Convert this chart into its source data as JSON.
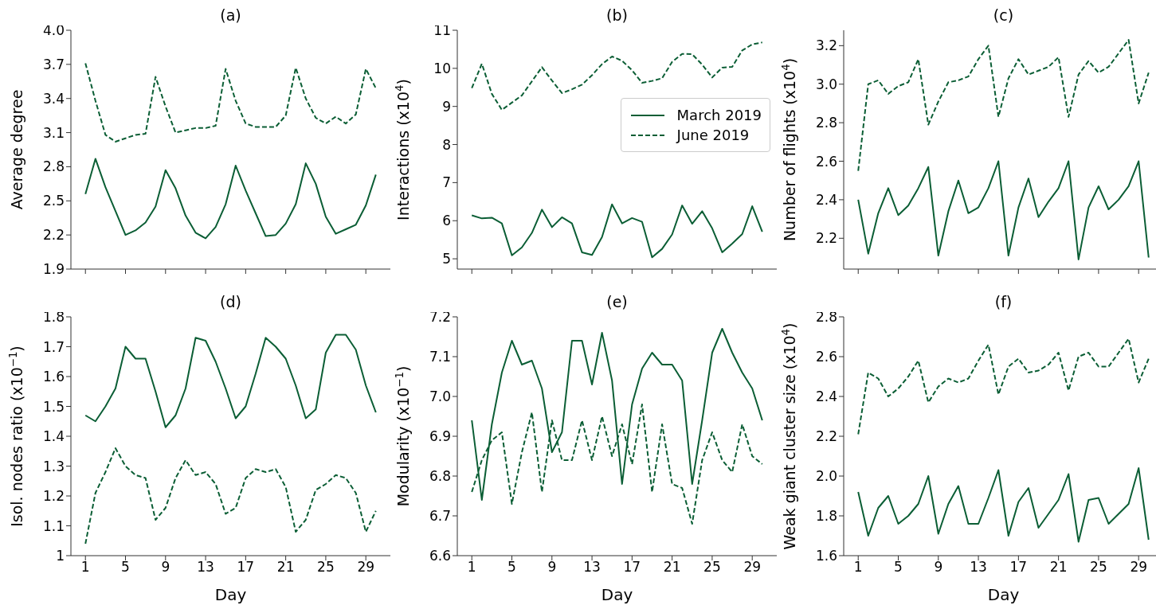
{
  "chart_data": [
    {
      "type": "line",
      "title": "(a)",
      "ylabel": "Average degree",
      "x": [
        1,
        2,
        3,
        4,
        5,
        6,
        7,
        8,
        9,
        10,
        11,
        12,
        13,
        14,
        15,
        16,
        17,
        18,
        19,
        20,
        21,
        22,
        23,
        24,
        25,
        26,
        27,
        28,
        29,
        30
      ],
      "xlim": [
        -0.45,
        31.45
      ],
      "xticks": [
        1,
        5,
        9,
        13,
        17,
        21,
        25,
        29
      ],
      "ylim": [
        1.9,
        4.0
      ],
      "yticks": [
        1.9,
        2.2,
        2.5,
        2.8,
        3.1,
        3.4,
        3.7,
        {
          "value": 4,
          "label": "4.0"
        }
      ],
      "tick_labels": "y",
      "grid": false,
      "legend": false,
      "series": [
        {
          "color": "#0b5e35",
          "line_style": "solid",
          "values": [
            2.56,
            2.87,
            2.62,
            2.41,
            2.2,
            2.24,
            2.31,
            2.45,
            2.77,
            2.61,
            2.37,
            2.22,
            2.17,
            2.27,
            2.47,
            2.81,
            2.59,
            2.39,
            2.19,
            2.2,
            2.3,
            2.47,
            2.83,
            2.65,
            2.36,
            2.21,
            2.25,
            2.29,
            2.46,
            2.73
          ]
        },
        {
          "color": "#0b5e35",
          "line_style": "dashed",
          "values": [
            3.71,
            3.38,
            3.08,
            3.02,
            3.05,
            3.08,
            3.09,
            3.59,
            3.33,
            3.1,
            3.12,
            3.14,
            3.14,
            3.16,
            3.66,
            3.38,
            3.18,
            3.15,
            3.15,
            3.15,
            3.25,
            3.67,
            3.4,
            3.23,
            3.18,
            3.24,
            3.18,
            3.26,
            3.66,
            3.49
          ]
        }
      ]
    },
    {
      "type": "line",
      "title": "(b)",
      "ylabel": "Interactions (x10$^{4}$)",
      "x": [
        1,
        2,
        3,
        4,
        5,
        6,
        7,
        8,
        9,
        10,
        11,
        12,
        13,
        14,
        15,
        16,
        17,
        18,
        19,
        20,
        21,
        22,
        23,
        24,
        25,
        26,
        27,
        28,
        29,
        30
      ],
      "xlim": [
        -0.45,
        31.45
      ],
      "xticks": [
        1,
        5,
        9,
        13,
        17,
        21,
        25,
        29
      ],
      "ylim": [
        4.73,
        11
      ],
      "yticks": [
        5,
        6,
        7,
        8,
        9,
        10,
        11
      ],
      "tick_labels": "y",
      "grid": false,
      "legend": "right",
      "series": [
        {
          "name": "March 2019",
          "color": "#0b5e35",
          "line_style": "solid",
          "values": [
            6.14,
            6.06,
            6.08,
            5.93,
            5.09,
            5.3,
            5.68,
            6.29,
            5.83,
            6.09,
            5.93,
            5.17,
            5.1,
            5.57,
            6.43,
            5.93,
            6.07,
            5.97,
            5.04,
            5.26,
            5.64,
            6.4,
            5.92,
            6.25,
            5.8,
            5.17,
            5.4,
            5.65,
            6.38,
            5.71
          ]
        },
        {
          "name": "June 2019",
          "color": "#0b5e35",
          "line_style": "dashed",
          "values": [
            9.48,
            10.12,
            9.33,
            8.91,
            9.1,
            9.29,
            9.66,
            10.03,
            9.68,
            9.35,
            9.45,
            9.57,
            9.82,
            10.11,
            10.31,
            10.2,
            9.95,
            9.62,
            9.67,
            9.74,
            10.17,
            10.38,
            10.37,
            10.1,
            9.76,
            10.02,
            10.04,
            10.47,
            10.63,
            10.68
          ]
        }
      ]
    },
    {
      "type": "line",
      "title": "(c)",
      "ylabel": "Number of flights (x10$^{4}$)",
      "x": [
        1,
        2,
        3,
        4,
        5,
        6,
        7,
        8,
        9,
        10,
        11,
        12,
        13,
        14,
        15,
        16,
        17,
        18,
        19,
        20,
        21,
        22,
        23,
        24,
        25,
        26,
        27,
        28,
        29,
        30
      ],
      "xlim": [
        -0.45,
        31.45
      ],
      "xticks": [
        1,
        5,
        9,
        13,
        17,
        21,
        25,
        29
      ],
      "ylim": [
        2.04,
        3.28
      ],
      "yticks": [
        2.2,
        2.4,
        2.6,
        2.8,
        {
          "value": 3,
          "label": "3.0"
        },
        3.2
      ],
      "tick_labels": "y",
      "grid": false,
      "legend": false,
      "series": [
        {
          "color": "#0b5e35",
          "line_style": "solid",
          "values": [
            2.4,
            2.12,
            2.33,
            2.46,
            2.32,
            2.37,
            2.46,
            2.57,
            2.11,
            2.34,
            2.5,
            2.33,
            2.36,
            2.46,
            2.6,
            2.11,
            2.36,
            2.51,
            2.31,
            2.39,
            2.46,
            2.6,
            2.09,
            2.36,
            2.47,
            2.35,
            2.4,
            2.47,
            2.6,
            2.1
          ]
        },
        {
          "color": "#0b5e35",
          "line_style": "dashed",
          "values": [
            2.55,
            3.0,
            3.02,
            2.95,
            2.99,
            3.01,
            3.13,
            2.79,
            2.91,
            3.01,
            3.02,
            3.04,
            3.13,
            3.2,
            2.83,
            3.03,
            3.13,
            3.05,
            3.07,
            3.09,
            3.14,
            2.83,
            3.05,
            3.12,
            3.06,
            3.09,
            3.16,
            3.23,
            2.9,
            3.06
          ]
        }
      ]
    },
    {
      "type": "line",
      "title": "(d)",
      "xlabel": "Day",
      "ylabel": "Isol. nodes ratio (x10$^{−1}$)",
      "x": [
        1,
        2,
        3,
        4,
        5,
        6,
        7,
        8,
        9,
        10,
        11,
        12,
        13,
        14,
        15,
        16,
        17,
        18,
        19,
        20,
        21,
        22,
        23,
        24,
        25,
        26,
        27,
        28,
        29,
        30
      ],
      "xlim": [
        -0.45,
        31.45
      ],
      "xticks": [
        1,
        5,
        9,
        13,
        17,
        21,
        25,
        29
      ],
      "ylim": [
        1,
        1.8
      ],
      "yticks": [
        1,
        1.1,
        1.2,
        1.3,
        1.4,
        1.5,
        1.6,
        1.7,
        1.8
      ],
      "grid": false,
      "legend": false,
      "series": [
        {
          "color": "#0b5e35",
          "line_style": "solid",
          "values": [
            1.47,
            1.45,
            1.5,
            1.56,
            1.7,
            1.66,
            1.66,
            1.55,
            1.43,
            1.47,
            1.56,
            1.73,
            1.72,
            1.65,
            1.56,
            1.46,
            1.5,
            1.61,
            1.73,
            1.7,
            1.66,
            1.57,
            1.46,
            1.49,
            1.68,
            1.74,
            1.74,
            1.69,
            1.57,
            1.48
          ]
        },
        {
          "color": "#0b5e35",
          "line_style": "dashed",
          "values": [
            1.04,
            1.21,
            1.28,
            1.36,
            1.3,
            1.27,
            1.26,
            1.12,
            1.16,
            1.26,
            1.32,
            1.27,
            1.28,
            1.24,
            1.14,
            1.16,
            1.26,
            1.29,
            1.28,
            1.29,
            1.23,
            1.08,
            1.12,
            1.22,
            1.24,
            1.27,
            1.26,
            1.21,
            1.08,
            1.15
          ]
        }
      ]
    },
    {
      "type": "line",
      "title": "(e)",
      "xlabel": "Day",
      "ylabel": "Modularity (x10$^{−1}$)",
      "x": [
        1,
        2,
        3,
        4,
        5,
        6,
        7,
        8,
        9,
        10,
        11,
        12,
        13,
        14,
        15,
        16,
        17,
        18,
        19,
        20,
        21,
        22,
        23,
        24,
        25,
        26,
        27,
        28,
        29,
        30
      ],
      "xlim": [
        -0.45,
        31.45
      ],
      "xticks": [
        1,
        5,
        9,
        13,
        17,
        21,
        25,
        29
      ],
      "ylim": [
        6.6,
        7.2
      ],
      "yticks": [
        6.6,
        6.7,
        6.8,
        6.9,
        {
          "value": 7,
          "label": "7.0"
        },
        7.1,
        7.2
      ],
      "grid": false,
      "legend": false,
      "series": [
        {
          "color": "#0b5e35",
          "line_style": "solid",
          "values": [
            6.94,
            6.74,
            6.93,
            7.06,
            7.14,
            7.08,
            7.09,
            7.02,
            6.86,
            6.91,
            7.14,
            7.14,
            7.03,
            7.16,
            7.04,
            6.78,
            6.98,
            7.07,
            7.11,
            7.08,
            7.08,
            7.04,
            6.78,
            6.94,
            7.11,
            7.17,
            7.11,
            7.06,
            7.02,
            6.94
          ]
        },
        {
          "color": "#0b5e35",
          "line_style": "dashed",
          "values": [
            6.76,
            6.84,
            6.89,
            6.91,
            6.73,
            6.86,
            6.96,
            6.76,
            6.94,
            6.84,
            6.84,
            6.94,
            6.84,
            6.95,
            6.85,
            6.93,
            6.83,
            6.98,
            6.76,
            6.93,
            6.78,
            6.77,
            6.68,
            6.84,
            6.91,
            6.84,
            6.81,
            6.93,
            6.85,
            6.83
          ]
        }
      ]
    },
    {
      "type": "line",
      "title": "(f)",
      "xlabel": "Day",
      "ylabel": "Weak giant cluster size (x10$^{4}$)",
      "x": [
        1,
        2,
        3,
        4,
        5,
        6,
        7,
        8,
        9,
        10,
        11,
        12,
        13,
        14,
        15,
        16,
        17,
        18,
        19,
        20,
        21,
        22,
        23,
        24,
        25,
        26,
        27,
        28,
        29,
        30
      ],
      "xlim": [
        -0.45,
        31.45
      ],
      "xticks": [
        1,
        5,
        9,
        13,
        17,
        21,
        25,
        29
      ],
      "ylim": [
        1.6,
        2.8
      ],
      "yticks": [
        1.6,
        1.8,
        {
          "value": 2,
          "label": "2.0"
        },
        2.2,
        2.4,
        2.6,
        2.8
      ],
      "grid": false,
      "legend": false,
      "series": [
        {
          "color": "#0b5e35",
          "line_style": "solid",
          "values": [
            1.92,
            1.7,
            1.84,
            1.9,
            1.76,
            1.8,
            1.86,
            2.0,
            1.71,
            1.86,
            1.95,
            1.76,
            1.76,
            1.89,
            2.03,
            1.7,
            1.87,
            1.94,
            1.74,
            1.81,
            1.88,
            2.01,
            1.67,
            1.88,
            1.89,
            1.76,
            1.81,
            1.86,
            2.04,
            1.68
          ]
        },
        {
          "color": "#0b5e35",
          "line_style": "dashed",
          "values": [
            2.21,
            2.52,
            2.49,
            2.4,
            2.44,
            2.5,
            2.58,
            2.37,
            2.45,
            2.49,
            2.47,
            2.49,
            2.58,
            2.66,
            2.41,
            2.55,
            2.59,
            2.52,
            2.53,
            2.56,
            2.62,
            2.43,
            2.6,
            2.62,
            2.55,
            2.55,
            2.62,
            2.69,
            2.47,
            2.59
          ]
        }
      ]
    }
  ]
}
